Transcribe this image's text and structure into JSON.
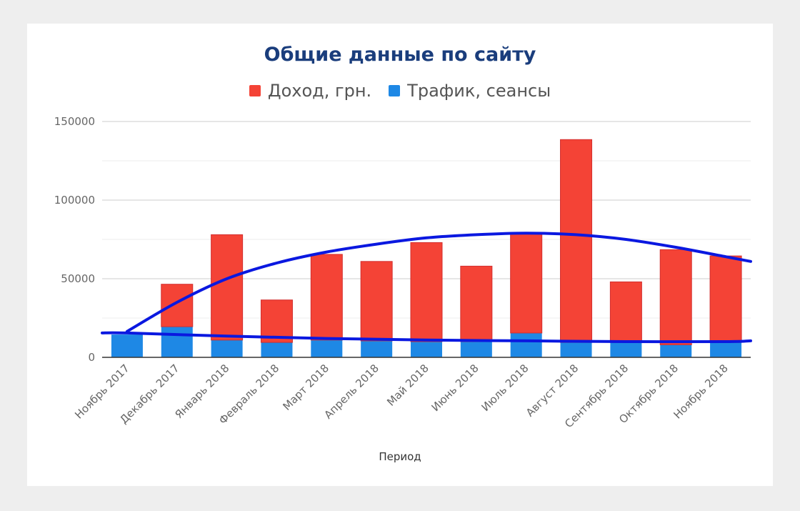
{
  "chart_data": {
    "type": "bar",
    "stacked": true,
    "title": "Общие данные по сайту",
    "xlabel": "Период",
    "ylabel": "",
    "ylim": [
      0,
      150000
    ],
    "yticks": [
      0,
      50000,
      100000,
      150000
    ],
    "grid": true,
    "legend_position": "top-center",
    "categories": [
      "Ноябрь 2017",
      "Декабрь 2017",
      "Январь 2018",
      "Февраль 2018",
      "Март 2018",
      "Апрель 2018",
      "Май 2018",
      "Июнь 2018",
      "Июль 2018",
      "Август 2018",
      "Сентябрь 2018",
      "Октябрь 2018",
      "Ноябрь 2018"
    ],
    "series": [
      {
        "name": "Трафик, сеансы",
        "color": "#1e88e5",
        "values": [
          14500,
          19500,
          11000,
          9500,
          11000,
          10500,
          10000,
          10000,
          15500,
          9500,
          9500,
          8000,
          9500
        ]
      },
      {
        "name": "Доход, грн.",
        "color": "#f44336",
        "values": [
          0,
          27000,
          67000,
          27000,
          54500,
          50500,
          63000,
          48000,
          63000,
          129000,
          38500,
          60500,
          55000
        ]
      }
    ],
    "annotations": [
      {
        "type": "trend-curve",
        "color": "#0a18e0",
        "description": "hand-drawn upper trend arc",
        "points": [
          [
            0,
            16500
          ],
          [
            1,
            35000
          ],
          [
            2,
            50000
          ],
          [
            3,
            60000
          ],
          [
            4,
            67000
          ],
          [
            5,
            72000
          ],
          [
            6,
            76000
          ],
          [
            7,
            78000
          ],
          [
            8,
            79000
          ],
          [
            9,
            78000
          ],
          [
            10,
            75000
          ],
          [
            11,
            70000
          ],
          [
            12,
            64000
          ],
          [
            12.5,
            61000
          ]
        ]
      },
      {
        "type": "trend-curve",
        "color": "#0a18e0",
        "description": "hand-drawn lower trend line",
        "points": [
          [
            -0.5,
            15500
          ],
          [
            0,
            15500
          ],
          [
            2,
            13500
          ],
          [
            4,
            12000
          ],
          [
            6,
            11000
          ],
          [
            8,
            10500
          ],
          [
            10,
            10000
          ],
          [
            12,
            10000
          ],
          [
            12.5,
            10500
          ]
        ]
      }
    ]
  }
}
